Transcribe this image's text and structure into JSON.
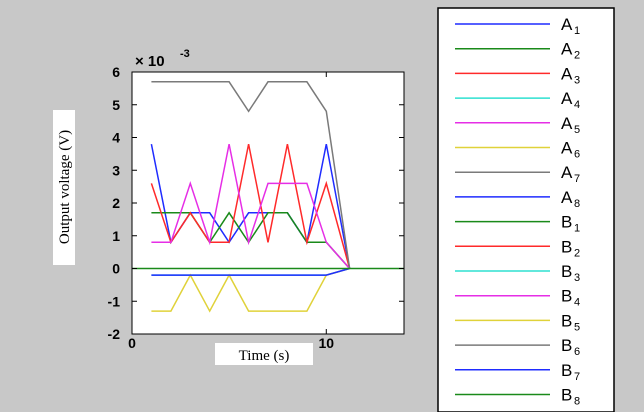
{
  "chart_data": {
    "type": "line",
    "xlabel": "Time (s)",
    "ylabel": "Output voltage (V)",
    "y_multiplier": "× 10",
    "y_multiplier_exp": "-3",
    "xlim": [
      0,
      14
    ],
    "ylim": [
      -2,
      6
    ],
    "x_ticks": [
      "0",
      "10"
    ],
    "x_tick_values": [
      0,
      10
    ],
    "y_ticks": [
      "-2",
      "-1",
      "0",
      "1",
      "2",
      "3",
      "4",
      "5",
      "6"
    ],
    "y_tick_values": [
      -2,
      -1,
      0,
      1,
      2,
      3,
      4,
      5,
      6
    ],
    "grid": false,
    "legend_position": "right",
    "series": [
      {
        "name": "A",
        "sub": "1",
        "color": "#1f2cff",
        "x": [
          1,
          2,
          3,
          4,
          5,
          6,
          7,
          8,
          9,
          10,
          11.2
        ],
        "y": [
          3.8,
          0.8,
          1.7,
          1.7,
          0.8,
          1.7,
          1.7,
          1.7,
          0.8,
          3.8,
          0
        ]
      },
      {
        "name": "A",
        "sub": "2",
        "color": "#1a8a1a",
        "x": [
          1,
          2,
          3,
          4,
          5,
          6,
          7,
          8,
          9,
          10,
          11.2
        ],
        "y": [
          1.7,
          1.7,
          1.7,
          0.8,
          1.7,
          0.8,
          1.7,
          1.7,
          0.8,
          0.8,
          0
        ]
      },
      {
        "name": "A",
        "sub": "3",
        "color": "#ff2a2a",
        "x": [
          1,
          2,
          3,
          4,
          5,
          6,
          7,
          8,
          9,
          10,
          11.2
        ],
        "y": [
          2.6,
          0.8,
          1.7,
          0.8,
          0.8,
          3.8,
          0.8,
          3.8,
          0.8,
          2.6,
          0
        ]
      },
      {
        "name": "A",
        "sub": "4",
        "color": "#2ee0d0",
        "x": [
          1,
          10,
          11.2
        ],
        "y": [
          -0.2,
          -0.2,
          0
        ]
      },
      {
        "name": "A",
        "sub": "5",
        "color": "#e62ee6",
        "x": [
          1,
          2,
          3,
          4,
          5,
          6,
          7,
          8,
          9,
          10,
          11.2
        ],
        "y": [
          0.8,
          0.8,
          2.6,
          0.8,
          3.8,
          0.8,
          2.6,
          2.6,
          2.6,
          0.8,
          0
        ]
      },
      {
        "name": "A",
        "sub": "6",
        "color": "#e0d23a",
        "x": [
          1,
          2,
          3,
          4,
          5,
          6,
          7,
          8,
          9,
          10,
          11.2
        ],
        "y": [
          -1.3,
          -1.3,
          -0.2,
          -1.3,
          -0.2,
          -1.3,
          -1.3,
          -1.3,
          -1.3,
          -0.2,
          0
        ]
      },
      {
        "name": "A",
        "sub": "7",
        "color": "#7a7a7a",
        "x": [
          1,
          2,
          3,
          4,
          5,
          6,
          7,
          8,
          9,
          10,
          11.2
        ],
        "y": [
          5.7,
          5.7,
          5.7,
          5.7,
          5.7,
          4.8,
          5.7,
          5.7,
          5.7,
          4.8,
          0
        ]
      },
      {
        "name": "A",
        "sub": "8",
        "color": "#1f2cff",
        "x": [
          1,
          10,
          11.2
        ],
        "y": [
          -0.2,
          -0.2,
          0
        ]
      },
      {
        "name": "B",
        "sub": "1",
        "color": "#1a8a1a",
        "x": [
          0,
          14
        ],
        "y": [
          0,
          0
        ]
      },
      {
        "name": "B",
        "sub": "2",
        "color": "#ff2a2a",
        "x": [],
        "y": []
      },
      {
        "name": "B",
        "sub": "3",
        "color": "#2ee0d0",
        "x": [],
        "y": []
      },
      {
        "name": "B",
        "sub": "4",
        "color": "#e62ee6",
        "x": [],
        "y": []
      },
      {
        "name": "B",
        "sub": "5",
        "color": "#e0d23a",
        "x": [],
        "y": []
      },
      {
        "name": "B",
        "sub": "6",
        "color": "#7a7a7a",
        "x": [],
        "y": []
      },
      {
        "name": "B",
        "sub": "7",
        "color": "#1f2cff",
        "x": [],
        "y": []
      },
      {
        "name": "B",
        "sub": "8",
        "color": "#1a8a1a",
        "x": [],
        "y": []
      }
    ]
  }
}
